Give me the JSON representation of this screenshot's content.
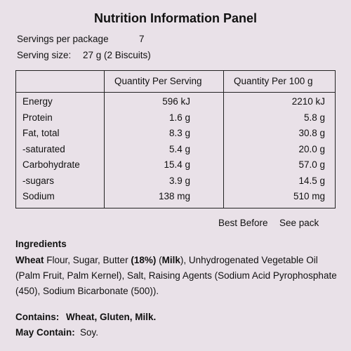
{
  "title": "Nutrition Information Panel",
  "servings": {
    "label": "Servings per package",
    "value": "7"
  },
  "serving_size": {
    "label": "Serving size:",
    "value": "27 g (2 Biscuits)"
  },
  "table": {
    "headers": [
      "Quantity Per Serving",
      "Quantity Per 100 g"
    ],
    "rows": [
      [
        "Energy",
        "596 kJ",
        "2210 kJ"
      ],
      [
        "Protein",
        "1.6 g",
        "5.8 g"
      ],
      [
        "Fat, total",
        "8.3 g",
        "30.8 g"
      ],
      [
        "-saturated",
        "5.4 g",
        "20.0 g"
      ],
      [
        "Carbohydrate",
        "15.4 g",
        "57.0 g"
      ],
      [
        "-sugars",
        "3.9 g",
        "14.5 g"
      ],
      [
        "Sodium",
        "138 mg",
        "510 mg"
      ]
    ]
  },
  "best_before": {
    "label": "Best Before",
    "value": "See pack"
  },
  "ingredients": {
    "heading": "Ingredients",
    "segments": [
      {
        "text": "Wheat",
        "bold": true
      },
      {
        "text": " Flour, Sugar, Butter ",
        "bold": false
      },
      {
        "text": "(18%)",
        "bold": true
      },
      {
        "text": " (",
        "bold": false
      },
      {
        "text": "Milk",
        "bold": true
      },
      {
        "text": "), Unhydrogenated Vegetable Oil (Palm Fruit, Palm Kernel), Salt, Raising Agents (Sodium Acid Pyrophosphate (450), Sodium Bicarbonate (500)).",
        "bold": false
      }
    ]
  },
  "contains": {
    "label": "Contains:",
    "value": "Wheat, Gluten, Milk."
  },
  "may_contain": {
    "label": "May Contain:",
    "value": "Soy."
  }
}
